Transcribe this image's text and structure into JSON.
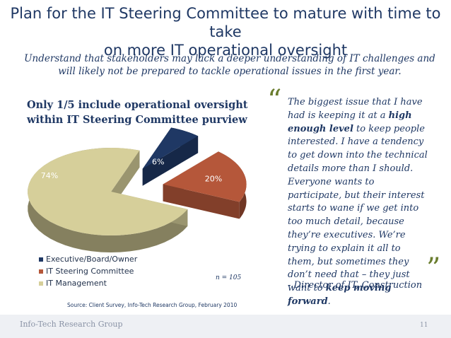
{
  "title_line1": "Plan for the IT Steering Committee to mature with time to take",
  "title_line2": "on more IT operational oversight",
  "subtitle_line1": "Understand that stakeholders may lack a deeper understanding of IT challenges and",
  "subtitle_line2": "will likely not be prepared to tackle operational issues in the first year.",
  "chart_title_line1": "Only 1/5 include operational oversight",
  "chart_title_line2": "within IT Steering Committee purview",
  "chart_data": {
    "type": "pie",
    "title": "Only 1/5 include operational oversight within IT Steering Committee purview",
    "categories": [
      "Executive/Board/Owner",
      "IT Steering Committee",
      "IT Management"
    ],
    "values": [
      6,
      20,
      74
    ],
    "value_labels": [
      "6%",
      "20%",
      "74%"
    ],
    "colors": [
      "#1f3864",
      "#b5573a",
      "#d6cf9a"
    ],
    "legend_position": "bottom-left"
  },
  "n_note": "n = 105",
  "source": "Source: Client Survey, Info-Tech Research Group, February 2010",
  "quote": {
    "open_mark": "“",
    "close_mark": "”",
    "p1_a": "The biggest issue that I have had is keeping it at a ",
    "p1_b": "high enough level",
    "p1_c": " to keep people interested. I have a tendency to get down into the technical details more than I should.",
    "p2_a": "Everyone wants to participate, but their interest starts to wane if we get into too much detail, because they’re executives. We’re trying to explain it all to them, but sometimes they don’t need that – they just want to ",
    "p2_b": "keep moving forward",
    "p2_c": "."
  },
  "attribution": "- Director of IT, Construction",
  "footer_left": "Info-Tech Research Group",
  "footer_right": "11"
}
